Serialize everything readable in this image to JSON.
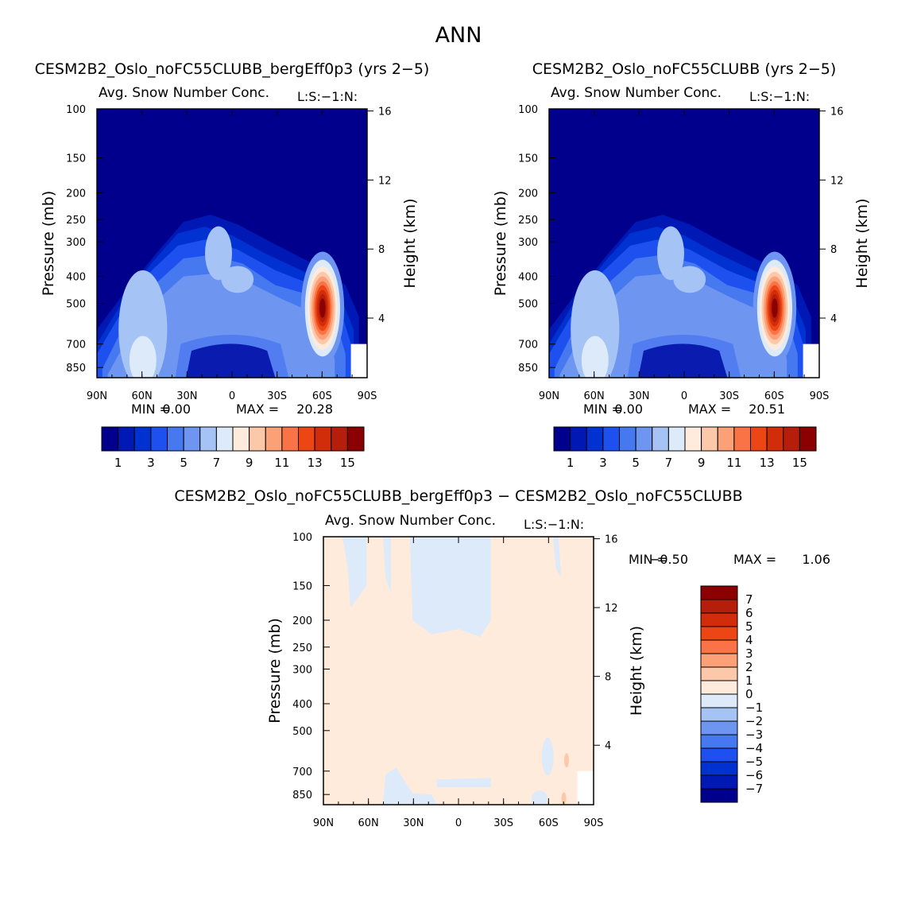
{
  "page_title": "ANN",
  "chart_data": [
    {
      "type": "heatmap",
      "title": "CESM2B2_Oslo_noFC55CLUBB_bergEff0p3 (yrs 2−5)",
      "subtitle": "Avg. Snow Number Conc.",
      "subtitle_right": "L:S:−1:N:",
      "xlabel": "",
      "ylabel": "Pressure (mb)",
      "y2label": "Height (km)",
      "x_ticks": [
        "90N",
        "60N",
        "30N",
        "0",
        "30S",
        "60S",
        "90S"
      ],
      "y_ticks": [
        "100",
        "150",
        "200",
        "250",
        "300",
        "400",
        "500",
        "700",
        "850"
      ],
      "y2_ticks": [
        "16",
        "12",
        "8",
        "4"
      ],
      "stats": {
        "min_label": "MIN =",
        "min": "0.00",
        "max_label": "MAX =",
        "max": "20.28"
      },
      "colorbar": {
        "labels": [
          "1",
          "3",
          "5",
          "7",
          "9",
          "11",
          "13",
          "15"
        ]
      },
      "peak": {
        "lat": "60S",
        "pressure_mb": 520,
        "value": 20.28
      }
    },
    {
      "type": "heatmap",
      "title": "CESM2B2_Oslo_noFC55CLUBB (yrs 2−5)",
      "subtitle": "Avg. Snow Number Conc.",
      "subtitle_right": "L:S:−1:N:",
      "xlabel": "",
      "ylabel": "Pressure (mb)",
      "y2label": "Height (km)",
      "x_ticks": [
        "90N",
        "60N",
        "30N",
        "0",
        "30S",
        "60S",
        "90S"
      ],
      "y_ticks": [
        "100",
        "150",
        "200",
        "250",
        "300",
        "400",
        "500",
        "700",
        "850"
      ],
      "y2_ticks": [
        "16",
        "12",
        "8",
        "4"
      ],
      "stats": {
        "min_label": "MIN =",
        "min": "0.00",
        "max_label": "MAX =",
        "max": "20.51"
      },
      "colorbar": {
        "labels": [
          "1",
          "3",
          "5",
          "7",
          "9",
          "11",
          "13",
          "15"
        ]
      },
      "peak": {
        "lat": "60S",
        "pressure_mb": 520,
        "value": 20.51
      }
    },
    {
      "type": "heatmap",
      "title": "CESM2B2_Oslo_noFC55CLUBB_bergEff0p3 − CESM2B2_Oslo_noFC55CLUBB",
      "subtitle": "Avg. Snow Number Conc.",
      "subtitle_right": "L:S:−1:N:",
      "xlabel": "",
      "ylabel": "Pressure (mb)",
      "y2label": "Height (km)",
      "x_ticks": [
        "90N",
        "60N",
        "30N",
        "0",
        "30S",
        "60S",
        "90S"
      ],
      "y_ticks": [
        "100",
        "150",
        "200",
        "250",
        "300",
        "400",
        "500",
        "700",
        "850"
      ],
      "y2_ticks": [
        "16",
        "12",
        "8",
        "4"
      ],
      "stats": {
        "min_label": "MIN =",
        "min": "−0.50",
        "max_label": "MAX =",
        "max": "1.06"
      },
      "colorbar": {
        "labels": [
          "7",
          "6",
          "5",
          "4",
          "3",
          "2",
          "1",
          "0",
          "−1",
          "−2",
          "−3",
          "−4",
          "−5",
          "−6",
          "−7"
        ]
      }
    }
  ],
  "colors": {
    "seq": [
      "#00008d",
      "#0019b4",
      "#0032d2",
      "#1e50f0",
      "#4678f0",
      "#6e96f0",
      "#a5c3f5",
      "#dceafa",
      "#ffebdc",
      "#fcc8aa",
      "#fca078",
      "#fa7346",
      "#eb4614",
      "#d22d0a",
      "#b41e0a",
      "#8b0000"
    ],
    "diff": [
      "#8b0000",
      "#b41e0a",
      "#d22d0a",
      "#eb4614",
      "#fa7346",
      "#fca078",
      "#fcc8aa",
      "#ffebdc",
      "#dceafa",
      "#a5c3f5",
      "#6e96f0",
      "#4678f0",
      "#1e50f0",
      "#0032d2",
      "#0019b4",
      "#00008d"
    ]
  }
}
